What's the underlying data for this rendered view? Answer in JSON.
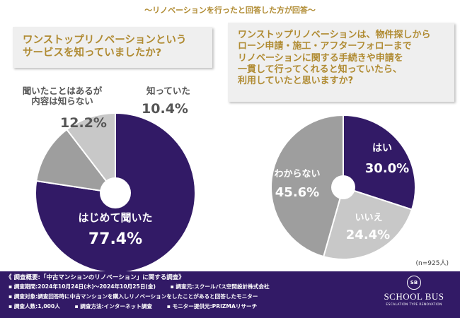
{
  "header": "〜リノベーションを行ったと回答した方が回答〜",
  "question1": "ワンストップリノベーションという\nサービスを知っていましたか?",
  "question2": "ワンストップリノベーションは、物件探しから\nローン申請・施工・アフターフォローまで\nリノベーションに関する手続きや申請を\n一貫して行ってくれると知っていたら、\n利用していたと思いますか?",
  "n_note": "(n=925人)",
  "colors": {
    "purple": "#321a66",
    "gray": "#9e9e9e",
    "lightgray": "#c8c8c8",
    "gold": "#b08b32"
  },
  "chart_data": [
    {
      "type": "pie",
      "title": "ワンストップリノベーションというサービスを知っていましたか?",
      "categories": [
        "はじめて聞いた",
        "聞いたことはあるが内容は知らない",
        "知っていた"
      ],
      "values": [
        77.4,
        12.2,
        10.4
      ],
      "value_labels": [
        "77.4%",
        "12.2%",
        "10.4%"
      ]
    },
    {
      "type": "pie",
      "title": "ワンストップリノベーションは、物件探しからローン申請・施工・アフターフォローまでリノベーションに関する手続きや申請を一貫して行ってくれると知っていたら、利用していたと思いますか?",
      "categories": [
        "はい",
        "いいえ",
        "わからない"
      ],
      "values": [
        30.0,
        24.4,
        45.6
      ],
      "value_labels": [
        "30.0%",
        "24.4%",
        "45.6%"
      ]
    }
  ],
  "footer": {
    "title": "《 調査概要:「中古マンションのリノベーション」に関する調査》",
    "rows": [
      [
        "▪ 調査期間:2024年10月24日(木)〜2024年10月25日(金)",
        "▪ 調査元:スクールバス空間設計株式会社"
      ],
      [
        "▪ 調査対象:調査回答時に中古マンションを購入しリノベーションをしたことがあると回答したモニター"
      ],
      [
        "▪ 調査人数:1,000人",
        "▪ 調査方法:インターネット調査",
        "▪ モニター提供元:PRIZMAリサーチ"
      ]
    ],
    "logo_mark": "SB",
    "logo_name": "SCHOOL BUS",
    "logo_sub": "ESCALATION TYPE RENOVATION"
  }
}
